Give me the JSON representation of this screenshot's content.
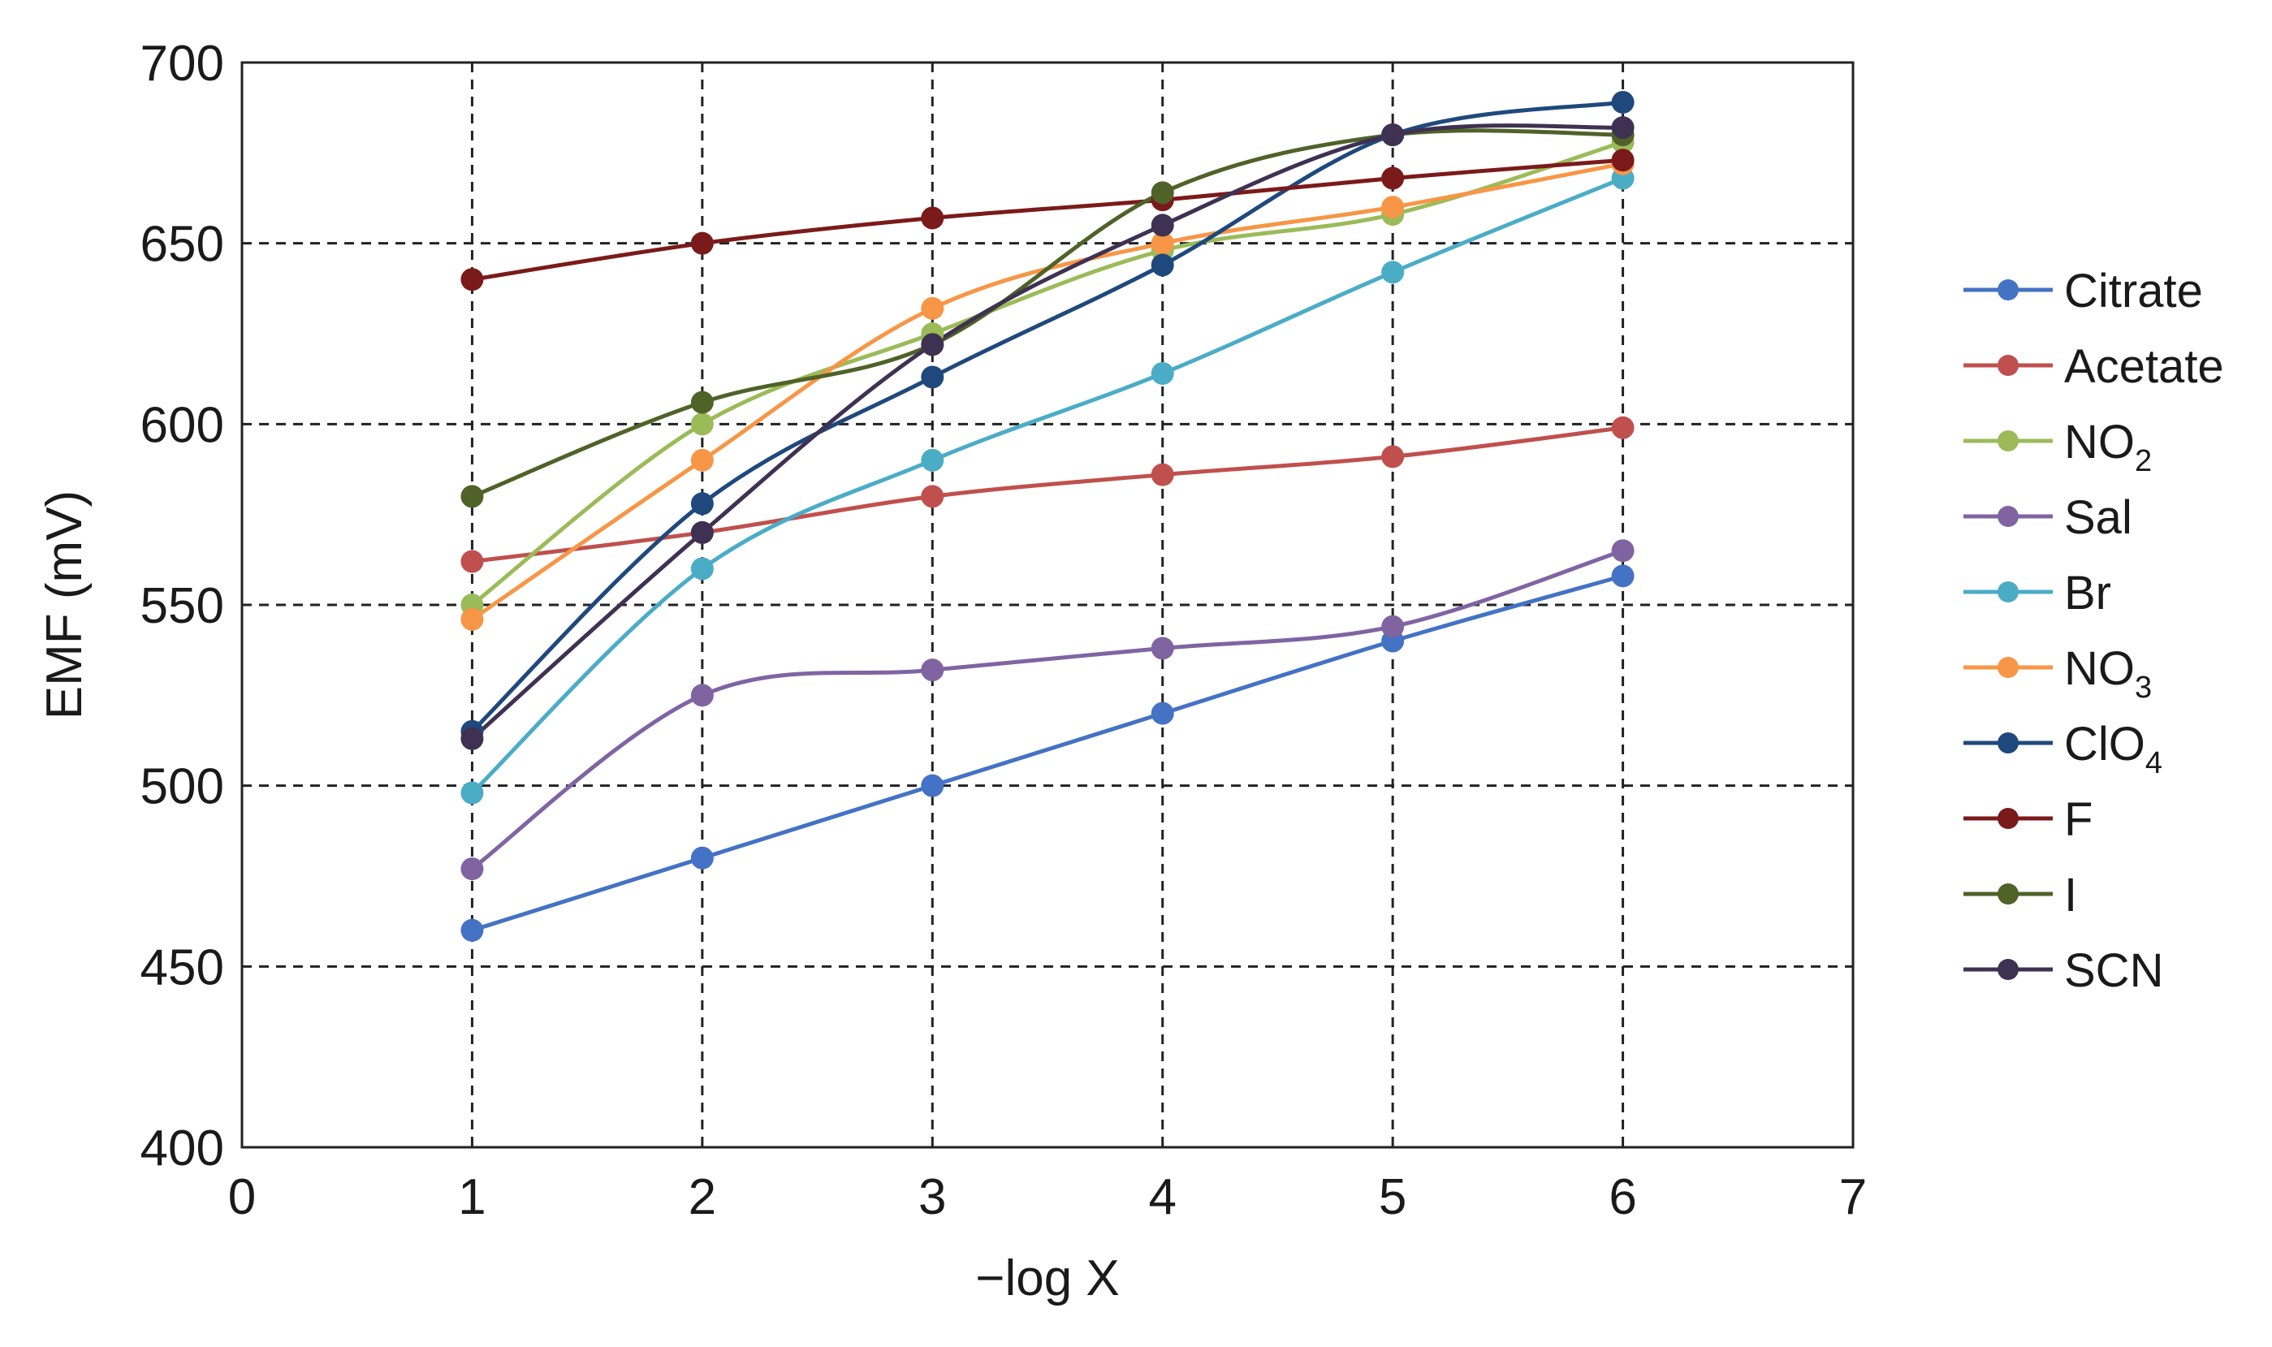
{
  "chart_data": {
    "type": "line",
    "title": "",
    "xlabel": "−log X",
    "ylabel": "EMF (mV)",
    "xlim": [
      0,
      7
    ],
    "ylim": [
      400,
      700
    ],
    "xticks": [
      0,
      1,
      2,
      3,
      4,
      5,
      6,
      7
    ],
    "yticks": [
      400,
      450,
      500,
      550,
      600,
      650,
      700
    ],
    "grid": "dashed",
    "legend_position": "right",
    "x": [
      1,
      2,
      3,
      4,
      5,
      6
    ],
    "series": [
      {
        "name": "Citrate",
        "label": "Citrate",
        "sub": "",
        "color": "#4472c4",
        "values": [
          460,
          480,
          500,
          520,
          540,
          558
        ]
      },
      {
        "name": "Acetate",
        "label": "Acetate",
        "sub": "",
        "color": "#c0504d",
        "values": [
          562,
          570,
          580,
          586,
          591,
          599
        ]
      },
      {
        "name": "NO2",
        "label": "NO",
        "sub": "2",
        "color": "#9bbb59",
        "values": [
          550,
          600,
          625,
          648,
          658,
          678
        ]
      },
      {
        "name": "Sal",
        "label": "Sal",
        "sub": "",
        "color": "#8064a2",
        "values": [
          477,
          525,
          532,
          538,
          544,
          565
        ]
      },
      {
        "name": "Br",
        "label": "Br",
        "sub": "",
        "color": "#4bacc6",
        "values": [
          498,
          560,
          590,
          614,
          642,
          668
        ]
      },
      {
        "name": "NO3",
        "label": "NO",
        "sub": "3",
        "color": "#f79646",
        "values": [
          546,
          590,
          632,
          650,
          660,
          672
        ]
      },
      {
        "name": "ClO4",
        "label": "ClO",
        "sub": "4",
        "color": "#1f497d",
        "values": [
          515,
          578,
          613,
          644,
          680,
          689
        ]
      },
      {
        "name": "F",
        "label": "F",
        "sub": "",
        "color": "#7b1a1a",
        "values": [
          640,
          650,
          657,
          662,
          668,
          673
        ]
      },
      {
        "name": "I",
        "label": "I",
        "sub": "",
        "color": "#4f6228",
        "values": [
          580,
          606,
          622,
          664,
          680,
          680
        ]
      },
      {
        "name": "SCN",
        "label": "SCN",
        "sub": "",
        "color": "#3f3151",
        "values": [
          513,
          570,
          622,
          655,
          680,
          682
        ]
      }
    ]
  }
}
